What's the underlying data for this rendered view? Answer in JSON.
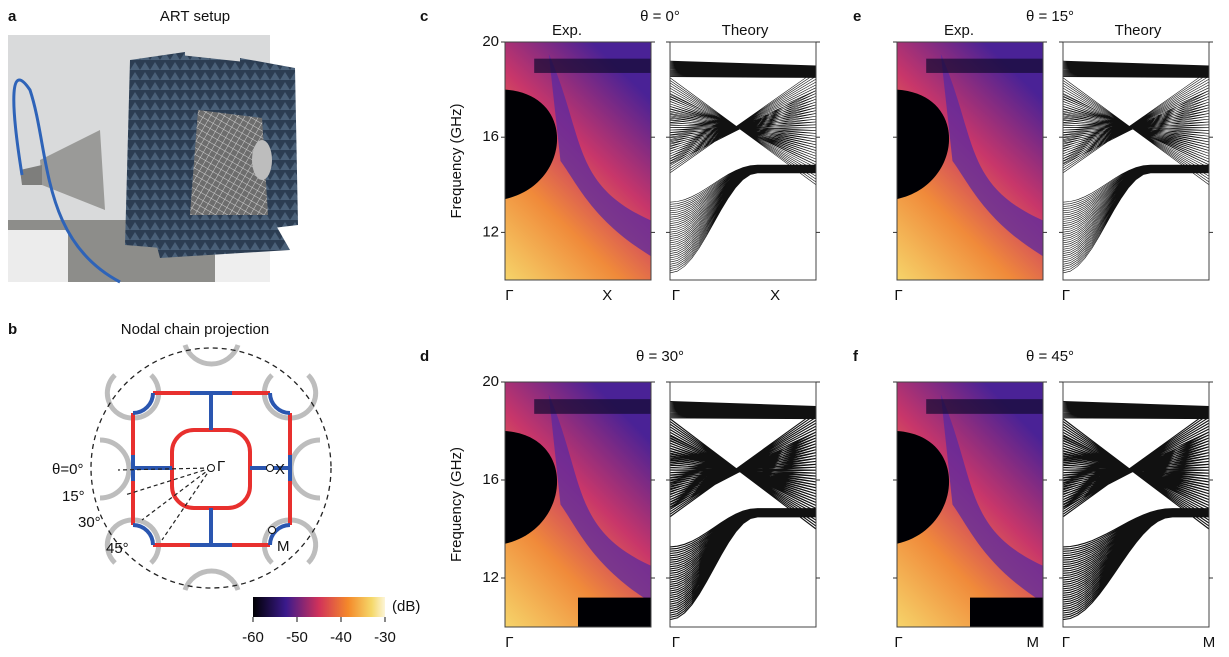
{
  "panel_a": {
    "label": "a",
    "title": "ART setup"
  },
  "panel_b": {
    "label": "b",
    "title": "Nodal chain projection",
    "angles": [
      "θ=0°",
      "15°",
      "30°",
      "45°"
    ],
    "points": [
      "Γ",
      "X",
      "M"
    ],
    "colorbar": {
      "unit": "(dB)",
      "ticks": [
        -60,
        -50,
        -40,
        -30
      ]
    }
  },
  "panels": [
    {
      "label": "c",
      "angle": "θ = 0°",
      "exp": "Exp.",
      "theory": "Theory",
      "ylabel": "Frequency (GHz)",
      "ylim": [
        10,
        20
      ],
      "yticks": [
        20,
        16,
        12
      ],
      "exp_x": [
        "Γ",
        "X"
      ],
      "theory_x": [
        "Γ",
        "X"
      ]
    },
    {
      "label": "e",
      "angle": "θ = 15°",
      "exp": "Exp.",
      "theory": "Theory",
      "exp_x": [
        "Γ"
      ],
      "theory_x": [
        "Γ"
      ]
    },
    {
      "label": "d",
      "angle": "θ = 30°",
      "ylabel": "Frequency (GHz)",
      "ylim": [
        10,
        20
      ],
      "yticks": [
        20,
        16,
        12
      ],
      "exp_x": [
        "Γ"
      ],
      "theory_x": [
        "Γ"
      ]
    },
    {
      "label": "f",
      "angle": "θ = 45°",
      "exp_x": [
        "Γ",
        "M"
      ],
      "theory_x": [
        "Γ",
        "M"
      ]
    }
  ]
}
